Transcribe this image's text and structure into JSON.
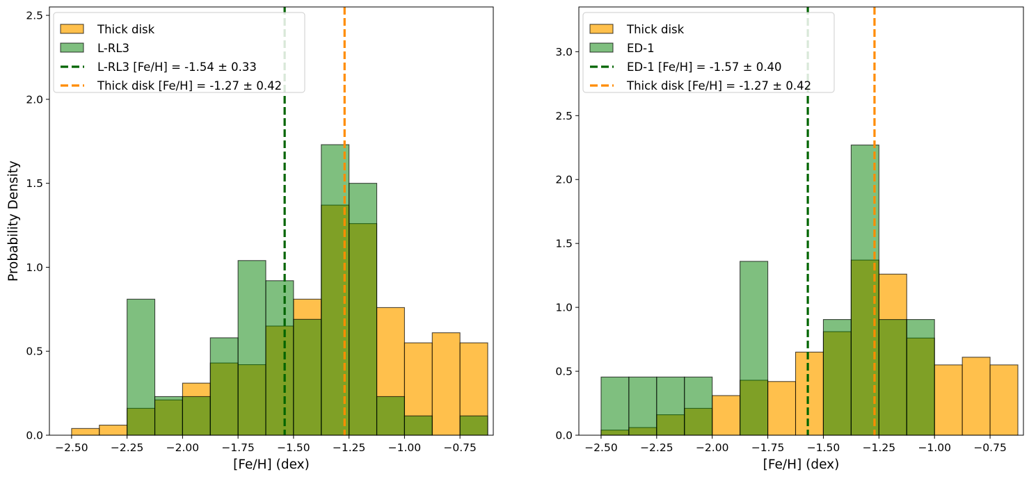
{
  "chart_data": [
    {
      "type": "histogram",
      "xlabel": "[Fe/H] (dex)",
      "ylabel": "Probability Density",
      "xlim": [
        -2.6,
        -0.6
      ],
      "ylim": [
        0,
        2.55
      ],
      "xticks": [
        -2.5,
        -2.25,
        -2.0,
        -1.75,
        -1.5,
        -1.25,
        -1.0,
        -0.75
      ],
      "xtick_labels": [
        "−2.50",
        "−2.25",
        "−2.00",
        "−1.75",
        "−1.50",
        "−1.25",
        "−1.00",
        "−0.75"
      ],
      "yticks": [
        0.0,
        0.5,
        1.0,
        1.5,
        2.0,
        2.5
      ],
      "ytick_labels": [
        "0.0",
        "0.5",
        "1.0",
        "1.5",
        "2.0",
        "2.5"
      ],
      "bin_edges": [
        -2.5,
        -2.375,
        -2.25,
        -2.125,
        -2.0,
        -1.875,
        -1.75,
        -1.625,
        -1.5,
        -1.375,
        -1.25,
        -1.125,
        -1.0,
        -0.875,
        -0.75,
        -0.625
      ],
      "series": [
        {
          "name": "Thick disk",
          "color": "#ffa500",
          "edge": "#000000",
          "values": [
            0.04,
            0.06,
            0.16,
            0.21,
            0.31,
            0.43,
            0.42,
            0.65,
            0.81,
            1.37,
            1.26,
            0.76,
            0.55,
            0.61,
            0.55
          ]
        },
        {
          "name": "L-RL3",
          "color": "#008000",
          "edge": "#000000",
          "values": [
            0,
            0,
            0.81,
            0.23,
            0.23,
            0.58,
            1.04,
            0.92,
            0.69,
            1.73,
            1.5,
            0.23,
            0.115,
            0,
            0.115
          ]
        }
      ],
      "vlines": [
        {
          "label": "L-RL3 [Fe/H] = -1.54 ± 0.33",
          "x": -1.54,
          "color": "#006400"
        },
        {
          "label": "Thick disk [Fe/H] = -1.27 ± 0.42",
          "x": -1.27,
          "color": "#ff8c00"
        }
      ],
      "legend_location": "upper-left"
    },
    {
      "type": "histogram",
      "xlabel": "[Fe/H] (dex)",
      "ylabel": "",
      "xlim": [
        -2.6,
        -0.6
      ],
      "ylim": [
        0,
        3.35
      ],
      "xticks": [
        -2.5,
        -2.25,
        -2.0,
        -1.75,
        -1.5,
        -1.25,
        -1.0,
        -0.75
      ],
      "xtick_labels": [
        "−2.50",
        "−2.25",
        "−2.00",
        "−1.75",
        "−1.50",
        "−1.25",
        "−1.00",
        "−0.75"
      ],
      "yticks": [
        0.0,
        0.5,
        1.0,
        1.5,
        2.0,
        2.5,
        3.0
      ],
      "ytick_labels": [
        "0.0",
        "0.5",
        "1.0",
        "1.5",
        "2.0",
        "2.5",
        "3.0"
      ],
      "bin_edges": [
        -2.5,
        -2.375,
        -2.25,
        -2.125,
        -2.0,
        -1.875,
        -1.75,
        -1.625,
        -1.5,
        -1.375,
        -1.25,
        -1.125,
        -1.0,
        -0.875,
        -0.75,
        -0.625
      ],
      "series": [
        {
          "name": "Thick disk",
          "color": "#ffa500",
          "edge": "#000000",
          "values": [
            0.04,
            0.06,
            0.16,
            0.21,
            0.31,
            0.43,
            0.42,
            0.65,
            0.81,
            1.37,
            1.26,
            0.76,
            0.55,
            0.61,
            0.55
          ]
        },
        {
          "name": "ED-1",
          "color": "#008000",
          "edge": "#000000",
          "values": [
            0.455,
            0.455,
            0.455,
            0.455,
            0,
            1.36,
            0,
            0,
            0.905,
            2.27,
            0.905,
            0.905,
            0,
            0,
            0
          ]
        }
      ],
      "vlines": [
        {
          "label": "ED-1 [Fe/H] = -1.57 ± 0.40",
          "x": -1.57,
          "color": "#006400"
        },
        {
          "label": "Thick disk [Fe/H] = -1.27 ± 0.42",
          "x": -1.27,
          "color": "#ff8c00"
        }
      ],
      "legend_location": "upper-left"
    }
  ]
}
